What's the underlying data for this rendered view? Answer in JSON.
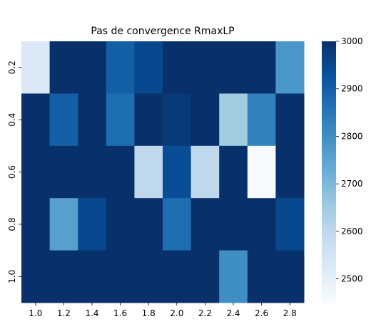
{
  "chart_data": {
    "type": "heatmap",
    "title": "Pas de convergence RmaxLP",
    "xlabel": "",
    "ylabel": "",
    "x": [
      "1.0",
      "1.2",
      "1.4",
      "1.6",
      "1.8",
      "2.0",
      "2.2",
      "2.4",
      "2.6",
      "2.8"
    ],
    "y": [
      "0.2",
      "0.4",
      "0.6",
      "0.8",
      "1.0"
    ],
    "values": [
      [
        2530,
        3000,
        3000,
        2900,
        2950,
        3000,
        3000,
        3000,
        3000,
        2780
      ],
      [
        3000,
        2900,
        3000,
        2870,
        3000,
        2980,
        3000,
        2650,
        2830,
        3000
      ],
      [
        3000,
        3000,
        3000,
        3000,
        2600,
        2940,
        2600,
        3000,
        2450,
        3000
      ],
      [
        3000,
        2760,
        2950,
        3000,
        3000,
        2870,
        3000,
        3000,
        3000,
        2950
      ],
      [
        3000,
        3000,
        3000,
        3000,
        3000,
        3000,
        3000,
        2800,
        3000,
        3000
      ]
    ],
    "colorbar": {
      "min": 2450,
      "max": 3000,
      "ticks": [
        2500,
        2600,
        2700,
        2800,
        2900,
        3000
      ],
      "colormap": "Blues",
      "low_color": "#f7fbff",
      "high_color": "#08306b"
    },
    "grid": false,
    "legend": "colorbar-right"
  }
}
